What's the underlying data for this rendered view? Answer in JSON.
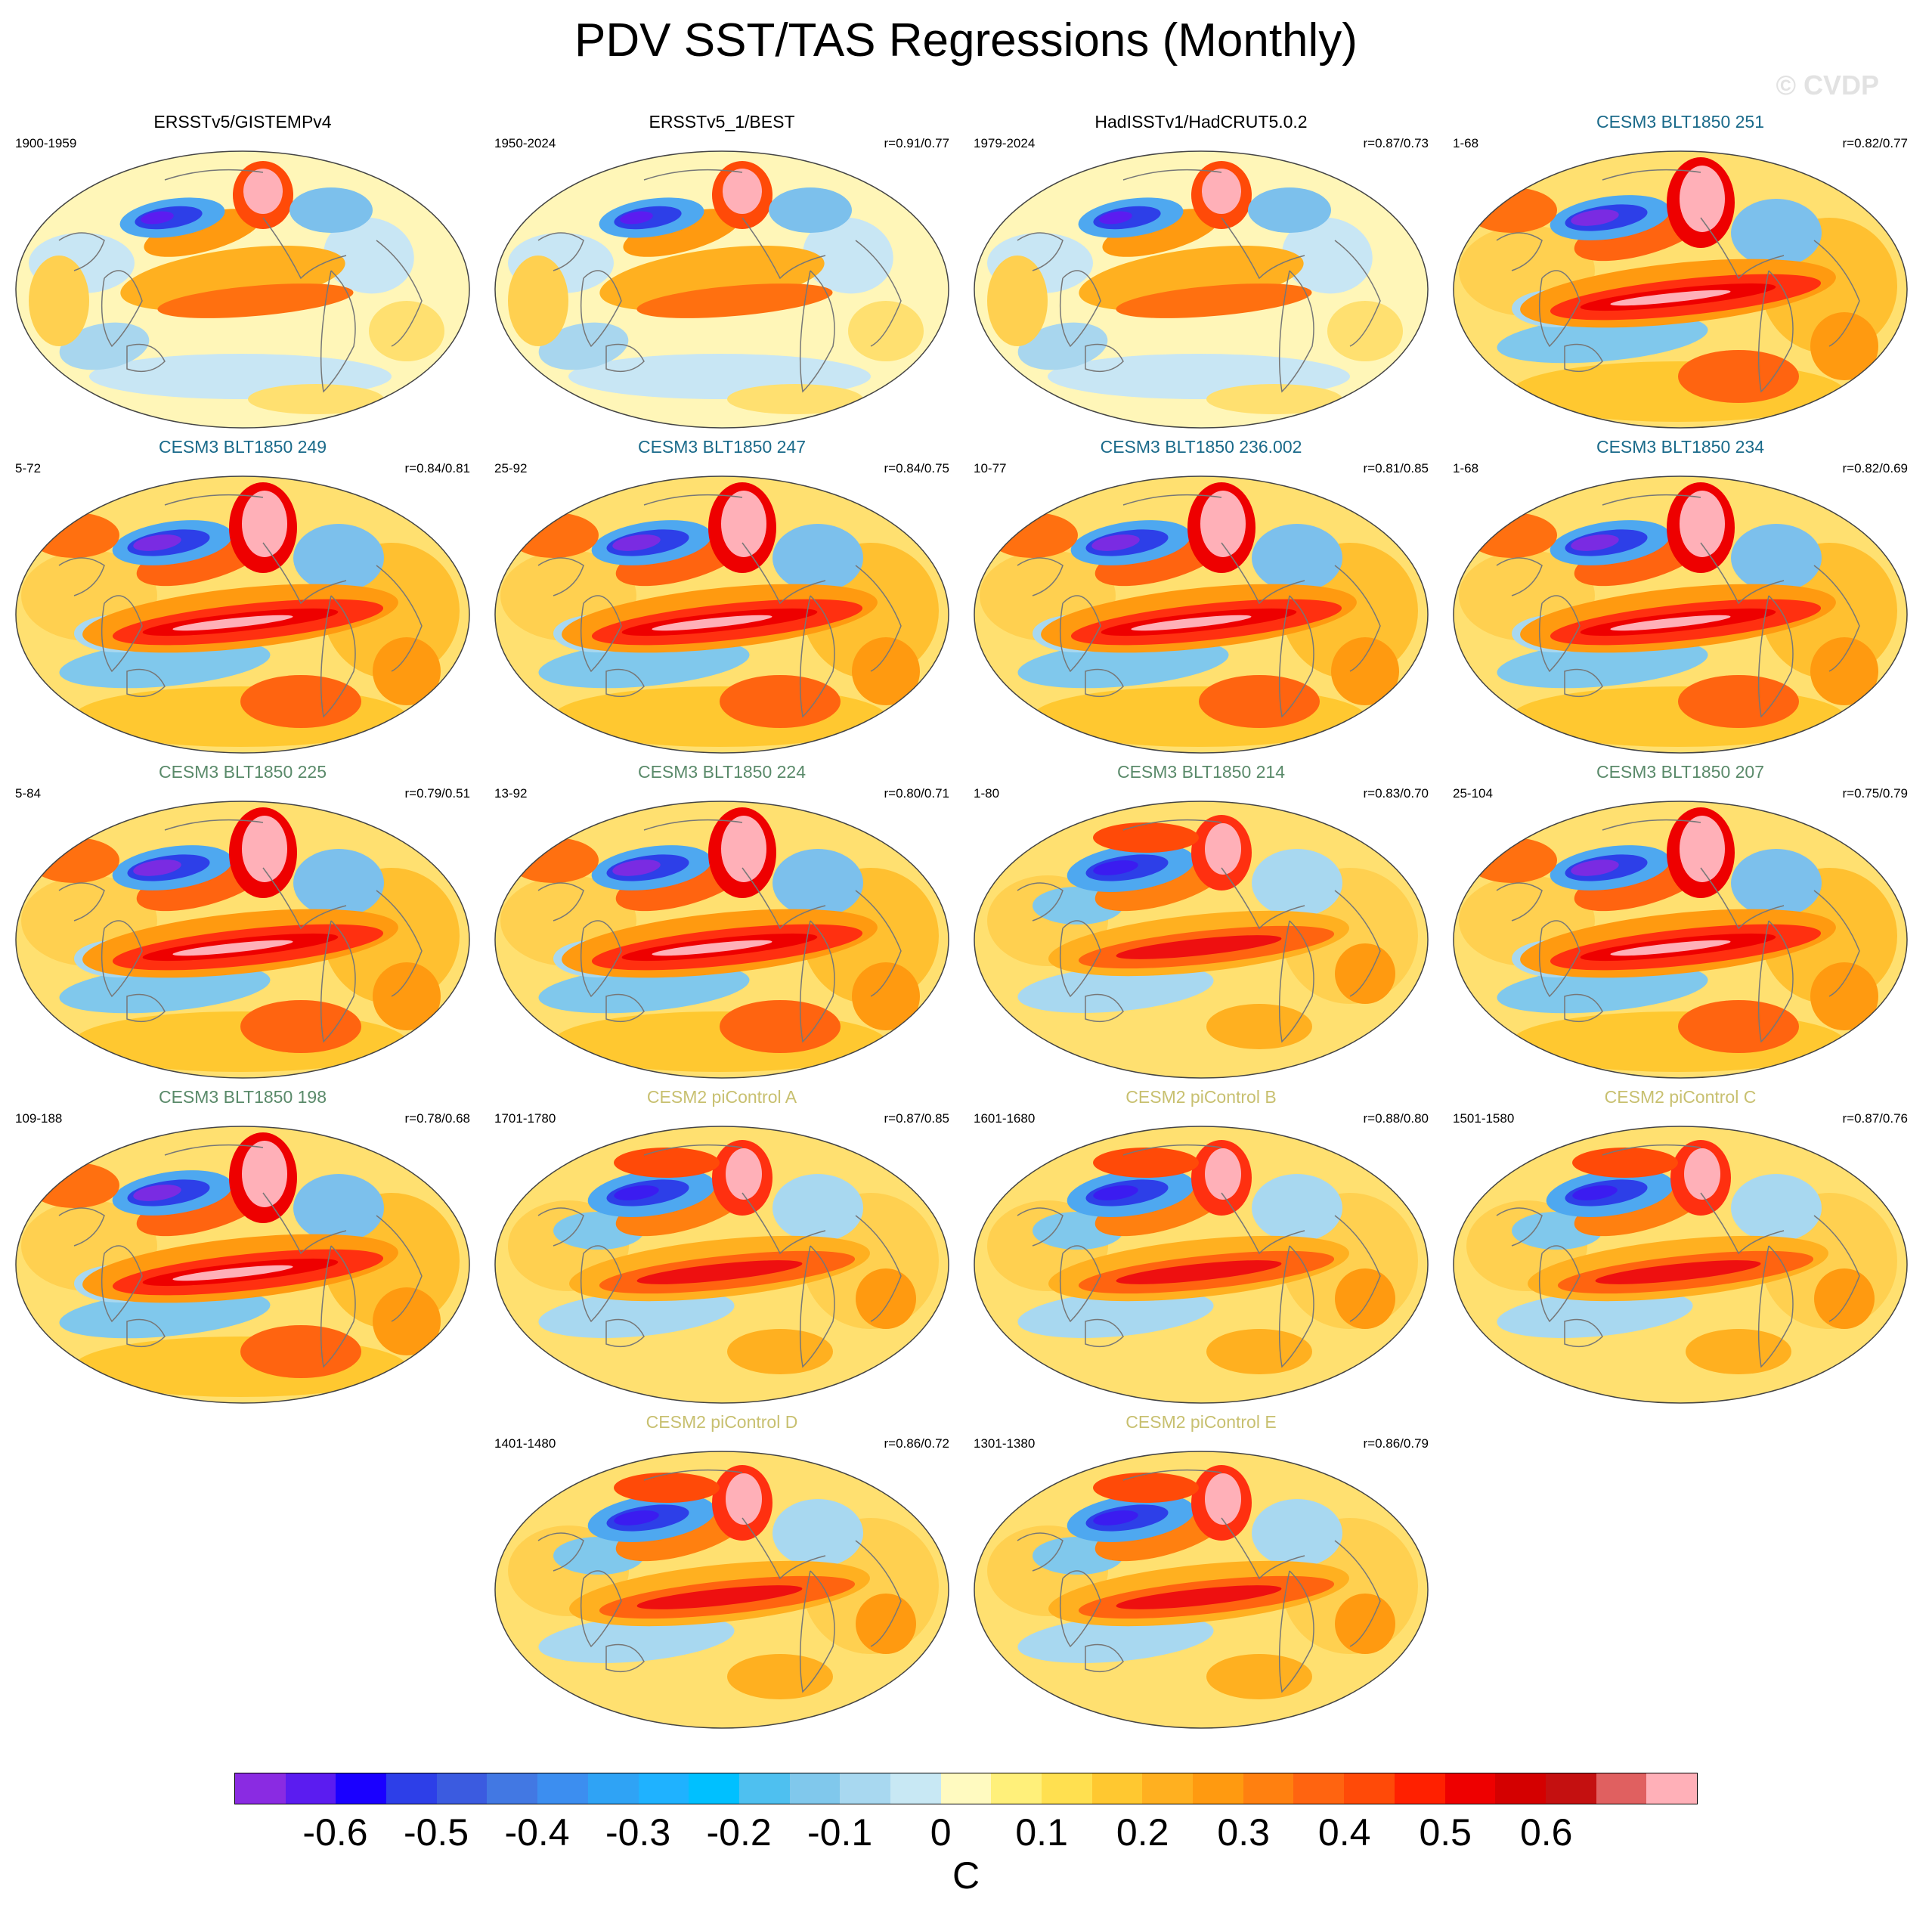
{
  "title": "PDV SST/TAS Regressions (Monthly)",
  "watermark": "© CVDP",
  "panels": [
    {
      "title": "ERSSTv5/GISTEMPv4",
      "years": "1900-1959",
      "corr": "",
      "title_color": "#000000",
      "style": 0
    },
    {
      "title": "ERSSTv5_1/BEST",
      "years": "1950-2024",
      "corr": "r=0.91/0.77",
      "title_color": "#000000",
      "style": 0
    },
    {
      "title": "HadISSTv1/HadCRUT5.0.2",
      "years": "1979-2024",
      "corr": "r=0.87/0.73",
      "title_color": "#000000",
      "style": 0
    },
    {
      "title": "CESM3 BLT1850 251",
      "years": "1-68",
      "corr": "r=0.82/0.77",
      "title_color": "#1a6a8a",
      "style": 1
    },
    {
      "title": "CESM3 BLT1850 249",
      "years": "5-72",
      "corr": "r=0.84/0.81",
      "title_color": "#1a6a8a",
      "style": 1
    },
    {
      "title": "CESM3 BLT1850 247",
      "years": "25-92",
      "corr": "r=0.84/0.75",
      "title_color": "#1a6a8a",
      "style": 1
    },
    {
      "title": "CESM3 BLT1850 236.002",
      "years": "10-77",
      "corr": "r=0.81/0.85",
      "title_color": "#1a6a8a",
      "style": 1
    },
    {
      "title": "CESM3 BLT1850 234",
      "years": "1-68",
      "corr": "r=0.82/0.69",
      "title_color": "#1a6a8a",
      "style": 1
    },
    {
      "title": "CESM3 BLT1850 225",
      "years": "5-84",
      "corr": "r=0.79/0.51",
      "title_color": "#5a8a6a",
      "style": 1
    },
    {
      "title": "CESM3 BLT1850 224",
      "years": "13-92",
      "corr": "r=0.80/0.71",
      "title_color": "#5a8a6a",
      "style": 1
    },
    {
      "title": "CESM3 BLT1850 214",
      "years": "1-80",
      "corr": "r=0.83/0.70",
      "title_color": "#5a8a6a",
      "style": 2
    },
    {
      "title": "CESM3 BLT1850 207",
      "years": "25-104",
      "corr": "r=0.75/0.79",
      "title_color": "#5a8a6a",
      "style": 1
    },
    {
      "title": "CESM3 BLT1850 198",
      "years": "109-188",
      "corr": "r=0.78/0.68",
      "title_color": "#5a8a6a",
      "style": 1
    },
    {
      "title": "CESM2 piControl A",
      "years": "1701-1780",
      "corr": "r=0.87/0.85",
      "title_color": "#c8c070",
      "style": 2
    },
    {
      "title": "CESM2 piControl B",
      "years": "1601-1680",
      "corr": "r=0.88/0.80",
      "title_color": "#c8c070",
      "style": 2
    },
    {
      "title": "CESM2 piControl C",
      "years": "1501-1580",
      "corr": "r=0.87/0.76",
      "title_color": "#c8c070",
      "style": 2
    },
    {
      "title": "CESM2 piControl D",
      "years": "1401-1480",
      "corr": "r=0.86/0.72",
      "title_color": "#c8c070",
      "style": 2
    },
    {
      "title": "CESM2 piControl E",
      "years": "1301-1380",
      "corr": "r=0.86/0.79",
      "title_color": "#c8c070",
      "style": 2
    }
  ],
  "colorbar": {
    "colors": [
      "#8a2be2",
      "#5b1cf0",
      "#1a00ff",
      "#2d3fe8",
      "#3b5be0",
      "#4278e3",
      "#3c8ef0",
      "#2fa3f5",
      "#1fb2ff",
      "#00c0ff",
      "#4ec0f0",
      "#80c8ec",
      "#a8d8f0",
      "#c8e8f4",
      "#fffac0",
      "#fff07a",
      "#ffe050",
      "#ffc830",
      "#ffb020",
      "#ff9a10",
      "#ff8010",
      "#ff6410",
      "#ff4a08",
      "#ff2000",
      "#ee0000",
      "#d40000",
      "#c41010",
      "#e06060",
      "#ffb0b8"
    ],
    "ticks": [
      "-0.6",
      "-0.5",
      "-0.4",
      "-0.3",
      "-0.2",
      "-0.1",
      "0",
      "0.1",
      "0.2",
      "0.3",
      "0.4",
      "0.5",
      "0.6"
    ],
    "unit": "C"
  }
}
